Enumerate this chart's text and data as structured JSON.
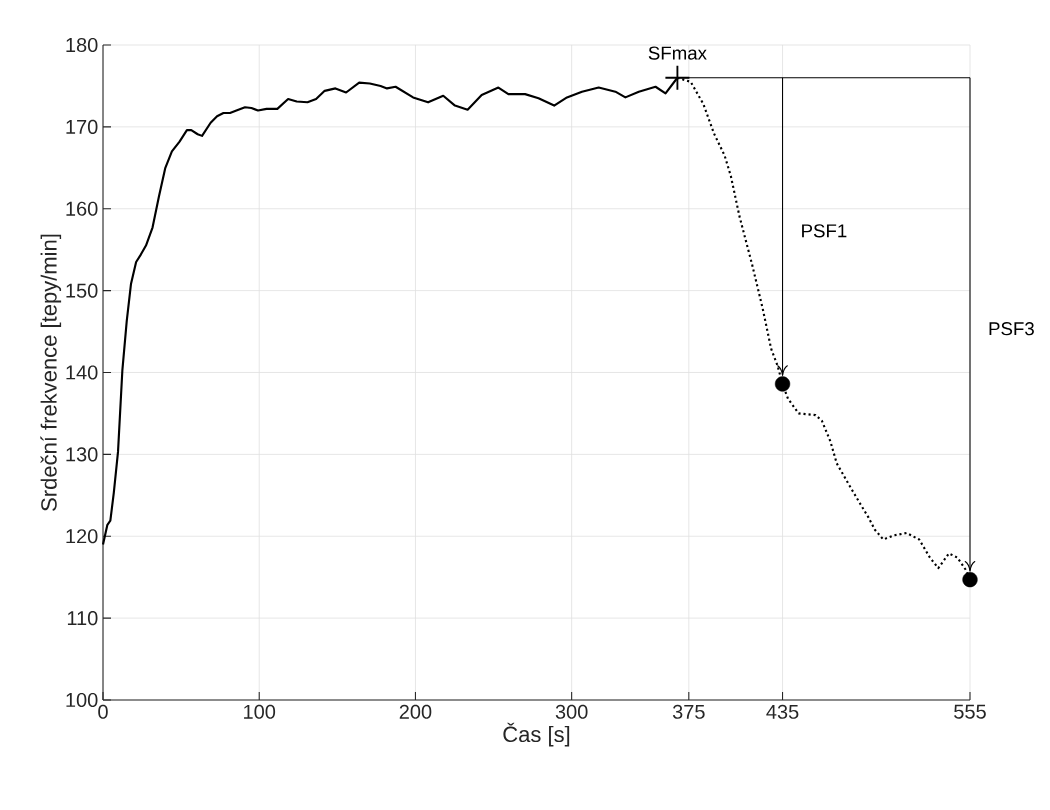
{
  "chart_data": {
    "type": "line",
    "xlabel": "Čas [s]",
    "ylabel": "Srdeční frekvence [tepy/min]",
    "xlim": [
      0,
      555
    ],
    "ylim": [
      100,
      180
    ],
    "xticks": [
      0,
      100,
      200,
      300,
      375,
      435,
      555
    ],
    "yticks": [
      100,
      110,
      120,
      130,
      140,
      150,
      160,
      170,
      180
    ],
    "grid": true,
    "series": [
      {
        "line_style": "solid",
        "color": "#000000",
        "x": [
          0,
          2.8,
          4.7,
          6.9,
          9.6,
          12.4,
          15.2,
          17.9,
          21.2,
          24.2,
          27.5,
          31.7,
          35.8,
          39.9,
          44.1,
          49,
          53.7,
          56.5,
          60.6,
          63.4,
          68.9,
          73,
          77.1,
          81.3,
          85.4,
          90.9,
          95,
          99.2,
          104.7,
          111.6,
          118.5,
          124,
          130.9,
          136.4,
          141.9,
          148.8,
          155.6,
          164,
          170.8,
          177.7,
          181.8,
          187.3,
          198.5,
          208.1,
          217.8,
          225.3,
          233.4,
          242.4,
          253.1,
          259.5,
          270.2,
          278.8,
          288.8,
          297,
          306.6,
          317.3,
          328,
          334.4,
          343,
          353.7,
          360.1,
          367.7
        ],
        "values": [
          119,
          121.4,
          121.9,
          125.3,
          130.3,
          140.3,
          146.3,
          150.8,
          153.5,
          154.4,
          155.5,
          157.7,
          161.5,
          165,
          167,
          168.2,
          169.6,
          169.6,
          169.1,
          168.9,
          170.5,
          171.3,
          171.7,
          171.7,
          172,
          172.4,
          172.3,
          172,
          172.2,
          172.2,
          173.4,
          173.1,
          173,
          173.4,
          174.4,
          174.7,
          174.2,
          175.4,
          175.3,
          175,
          174.7,
          174.9,
          173.6,
          173,
          173.8,
          172.6,
          172.1,
          173.9,
          174.8,
          174,
          174,
          173.5,
          172.6,
          173.6,
          174.3,
          174.8,
          174.3,
          173.6,
          174.3,
          174.9,
          174.1,
          176
        ]
      },
      {
        "line_style": "dotted",
        "color": "#000000",
        "x": [
          367.7,
          369.4,
          376.2,
          384.3,
          391.1,
          397.9,
          401.9,
          407.4,
          415.5,
          422.3,
          427.7,
          431.7,
          435,
          438.5,
          445.3,
          456.1,
          460.2,
          465.6,
          469.7,
          477.8,
          484.6,
          490,
          494.1,
          499.5,
          506.3,
          514.4,
          522.5,
          529.3,
          534.7,
          541.5,
          546.9,
          552.3,
          555
        ],
        "values": [
          176,
          175.9,
          175.5,
          172.8,
          169.2,
          166.5,
          164,
          159.1,
          153.2,
          147.8,
          142.9,
          140.9,
          138.6,
          136.8,
          135,
          134.8,
          134.1,
          131.6,
          128.9,
          126.2,
          124,
          122.3,
          120.8,
          119.6,
          120.1,
          120.4,
          119.6,
          117.4,
          116.1,
          117.9,
          117.4,
          115.9,
          114.7
        ]
      },
      {
        "type": "scatter",
        "marker": "cross",
        "color": "#000000",
        "x": [
          367.7
        ],
        "values": [
          176
        ]
      },
      {
        "type": "scatter",
        "marker": "circle",
        "color": "#000000",
        "x": [
          435,
          555
        ],
        "values": [
          138.6,
          114.7
        ]
      }
    ],
    "annotations": [
      {
        "text": "SFmax",
        "x": 367.7,
        "y": 176
      },
      "PSF1",
      "PSF3"
    ]
  }
}
